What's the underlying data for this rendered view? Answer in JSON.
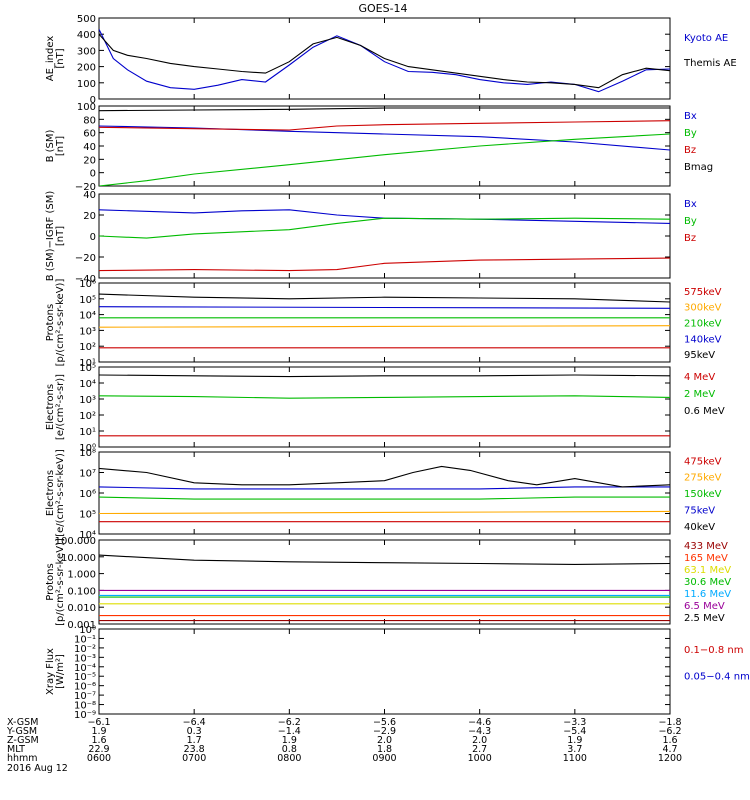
{
  "title": "GOES-14",
  "chart_data": [
    {
      "type": "line",
      "ylabel": "AE_index\n[nT]",
      "ylim": [
        0,
        500
      ],
      "yscale": "linear",
      "yticks": [
        "0",
        "100",
        "200",
        "300",
        "400",
        "500"
      ],
      "legend": [
        {
          "label": "Kyoto AE",
          "color": "#0000cc"
        },
        {
          "label": "Themis AE",
          "color": "#000000"
        }
      ],
      "series": [
        {
          "name": "Kyoto AE",
          "color": "#0000cc",
          "x": [
            0,
            0.15,
            0.3,
            0.5,
            0.75,
            1,
            1.25,
            1.5,
            1.75,
            2,
            2.25,
            2.5,
            2.75,
            3,
            3.25,
            3.5,
            3.75,
            4,
            4.25,
            4.5,
            4.75,
            5,
            5.25,
            5.5,
            5.75,
            6
          ],
          "values": [
            430,
            250,
            180,
            110,
            70,
            60,
            85,
            120,
            105,
            210,
            320,
            390,
            330,
            230,
            170,
            165,
            150,
            120,
            100,
            90,
            105,
            90,
            45,
            110,
            180,
            185
          ]
        },
        {
          "name": "Themis AE",
          "color": "#000000",
          "x": [
            0,
            0.15,
            0.3,
            0.5,
            0.75,
            1,
            1.25,
            1.5,
            1.75,
            2,
            2.25,
            2.5,
            2.75,
            3,
            3.25,
            3.5,
            3.75,
            4,
            4.25,
            4.5,
            4.75,
            5,
            5.25,
            5.5,
            5.75,
            6
          ],
          "values": [
            400,
            300,
            270,
            250,
            220,
            200,
            185,
            170,
            160,
            230,
            340,
            380,
            330,
            250,
            200,
            180,
            160,
            140,
            120,
            105,
            100,
            90,
            70,
            150,
            190,
            175
          ]
        }
      ]
    },
    {
      "type": "line",
      "ylabel": "B (SM)\n[nT]",
      "ylim": [
        -20,
        100
      ],
      "yscale": "linear",
      "yticks": [
        "−20",
        "0",
        "20",
        "40",
        "60",
        "80",
        "100"
      ],
      "legend": [
        {
          "label": "Bx",
          "color": "#0000cc"
        },
        {
          "label": "By",
          "color": "#00bb00"
        },
        {
          "label": "Bz",
          "color": "#cc0000"
        },
        {
          "label": "Bmag",
          "color": "#000000"
        }
      ],
      "series": [
        {
          "name": "Bx",
          "color": "#0000cc",
          "x": [
            0,
            1,
            2,
            3,
            4,
            5,
            6
          ],
          "values": [
            70,
            67,
            62,
            58,
            54,
            46,
            34
          ]
        },
        {
          "name": "By",
          "color": "#00bb00",
          "x": [
            0,
            0.5,
            1,
            2,
            3,
            4,
            5,
            6
          ],
          "values": [
            -20,
            -12,
            -2,
            12,
            27,
            40,
            50,
            58
          ]
        },
        {
          "name": "Bz",
          "color": "#cc0000",
          "x": [
            0,
            1,
            2,
            2.5,
            3,
            4,
            5,
            6
          ],
          "values": [
            68,
            66,
            64,
            70,
            72,
            74,
            76,
            78
          ]
        },
        {
          "name": "Bmag",
          "color": "#000000",
          "x": [
            0,
            1,
            2,
            3,
            4,
            5,
            6
          ],
          "values": [
            93,
            94,
            95,
            97,
            97,
            97,
            97
          ]
        }
      ]
    },
    {
      "type": "line",
      "ylabel": "B (SM)−IGRF (SM)\n[nT]",
      "ylim": [
        -40,
        40
      ],
      "yscale": "linear",
      "yticks": [
        "−40",
        "−20",
        "0",
        "20",
        "40"
      ],
      "legend": [
        {
          "label": "Bx",
          "color": "#0000cc"
        },
        {
          "label": "By",
          "color": "#00bb00"
        },
        {
          "label": "Bz",
          "color": "#cc0000"
        }
      ],
      "series": [
        {
          "name": "Bx",
          "color": "#0000cc",
          "x": [
            0,
            1,
            1.5,
            2,
            2.5,
            3,
            4,
            5,
            6
          ],
          "values": [
            25,
            22,
            24,
            25,
            20,
            17,
            16,
            14,
            12
          ]
        },
        {
          "name": "By",
          "color": "#00bb00",
          "x": [
            0,
            0.5,
            1,
            2,
            2.5,
            3,
            4,
            5,
            6
          ],
          "values": [
            0,
            -2,
            2,
            6,
            12,
            17,
            16,
            17,
            16
          ]
        },
        {
          "name": "Bz",
          "color": "#cc0000",
          "x": [
            0,
            1,
            2,
            2.5,
            3,
            4,
            5,
            6
          ],
          "values": [
            -33,
            -32,
            -33,
            -32,
            -26,
            -23,
            -22,
            -21
          ]
        }
      ]
    },
    {
      "type": "line",
      "ylabel": "Protons\n[p/(cm²-s-sr-keV)]",
      "ylim": [
        1,
        6
      ],
      "yscale": "log",
      "yticks": [
        "10¹",
        "10²",
        "10³",
        "10⁴",
        "10⁵",
        "10⁶"
      ],
      "legend": [
        {
          "label": "575keV",
          "color": "#cc0000"
        },
        {
          "label": "300keV",
          "color": "#ffaa00"
        },
        {
          "label": "210keV",
          "color": "#00bb00"
        },
        {
          "label": "140keV",
          "color": "#0000cc"
        },
        {
          "label": "95keV",
          "color": "#000000"
        }
      ],
      "series": [
        {
          "name": "575keV",
          "color": "#cc0000",
          "x": [
            0,
            6
          ],
          "values": [
            1.9,
            1.9
          ]
        },
        {
          "name": "300keV",
          "color": "#ffaa00",
          "x": [
            0,
            6
          ],
          "values": [
            3.2,
            3.3
          ]
        },
        {
          "name": "210keV",
          "color": "#00bb00",
          "x": [
            0,
            6
          ],
          "values": [
            3.8,
            3.8
          ]
        },
        {
          "name": "140keV",
          "color": "#0000cc",
          "x": [
            0,
            6
          ],
          "values": [
            4.5,
            4.4
          ]
        },
        {
          "name": "95keV",
          "color": "#000000",
          "x": [
            0,
            1,
            2,
            3,
            4,
            5,
            6
          ],
          "values": [
            5.3,
            5.1,
            5.0,
            5.1,
            5.05,
            5.0,
            4.8
          ]
        }
      ]
    },
    {
      "type": "line",
      "ylabel": "Electrons\n[e/(cm²-s-sr)]",
      "ylim": [
        0,
        5
      ],
      "yscale": "log",
      "yticks": [
        "10⁰",
        "10¹",
        "10²",
        "10³",
        "10⁴",
        "10⁵"
      ],
      "legend": [
        {
          "label": "4 MeV",
          "color": "#cc0000"
        },
        {
          "label": "2 MeV",
          "color": "#00bb00"
        },
        {
          "label": "0.6 MeV",
          "color": "#000000"
        }
      ],
      "series": [
        {
          "name": "4 MeV",
          "color": "#cc0000",
          "x": [
            0,
            6
          ],
          "values": [
            0.7,
            0.7
          ]
        },
        {
          "name": "2 MeV",
          "color": "#00bb00",
          "x": [
            0,
            1,
            2,
            3,
            4,
            5,
            6
          ],
          "values": [
            3.2,
            3.15,
            3.05,
            3.1,
            3.15,
            3.2,
            3.1
          ]
        },
        {
          "name": "0.6 MeV",
          "color": "#000000",
          "x": [
            0,
            1,
            2,
            3,
            4,
            5,
            6
          ],
          "values": [
            4.5,
            4.45,
            4.4,
            4.45,
            4.45,
            4.5,
            4.45
          ]
        }
      ]
    },
    {
      "type": "line",
      "ylabel": "Electrons\n[e/(cm²-s-sr-keV)]",
      "ylim": [
        4,
        8
      ],
      "yscale": "log",
      "yticks": [
        "10⁴",
        "10⁵",
        "10⁶",
        "10⁷",
        "10⁸"
      ],
      "legend": [
        {
          "label": "475keV",
          "color": "#cc0000"
        },
        {
          "label": "275keV",
          "color": "#ffaa00"
        },
        {
          "label": "150keV",
          "color": "#00bb00"
        },
        {
          "label": "75keV",
          "color": "#0000cc"
        },
        {
          "label": "40keV",
          "color": "#000000"
        }
      ],
      "series": [
        {
          "name": "475keV",
          "color": "#cc0000",
          "x": [
            0,
            6
          ],
          "values": [
            4.6,
            4.6
          ]
        },
        {
          "name": "275keV",
          "color": "#ffaa00",
          "x": [
            0,
            6
          ],
          "values": [
            5.0,
            5.1
          ]
        },
        {
          "name": "150keV",
          "color": "#00bb00",
          "x": [
            0,
            1,
            2,
            3,
            4,
            5,
            6
          ],
          "values": [
            5.8,
            5.7,
            5.7,
            5.7,
            5.7,
            5.8,
            5.8
          ]
        },
        {
          "name": "75keV",
          "color": "#0000cc",
          "x": [
            0,
            1,
            2,
            3,
            4,
            5,
            6
          ],
          "values": [
            6.3,
            6.2,
            6.2,
            6.2,
            6.2,
            6.3,
            6.3
          ]
        },
        {
          "name": "40keV",
          "color": "#000000",
          "x": [
            0,
            0.5,
            1,
            1.5,
            2,
            2.5,
            3,
            3.3,
            3.6,
            3.9,
            4.3,
            4.6,
            5,
            5.5,
            6
          ],
          "values": [
            7.2,
            7.0,
            6.5,
            6.4,
            6.4,
            6.5,
            6.6,
            7.0,
            7.3,
            7.1,
            6.6,
            6.4,
            6.7,
            6.3,
            6.4
          ]
        }
      ]
    },
    {
      "type": "line",
      "ylabel": "Protons\n[p/(cm²-s-sr-keV)]",
      "ylim": [
        -3,
        2
      ],
      "yscale": "log",
      "yticks": [
        "0.001",
        "0.010",
        "0.100",
        "1.000",
        "10.000",
        "100.000"
      ],
      "legend": [
        {
          "label": "433 MeV",
          "color": "#990000"
        },
        {
          "label": "165 MeV",
          "color": "#ff3300"
        },
        {
          "label": "63.1 MeV",
          "color": "#dddd00"
        },
        {
          "label": "30.6 MeV",
          "color": "#00bb00"
        },
        {
          "label": "11.6 MeV",
          "color": "#00aaff"
        },
        {
          "label": "6.5 MeV",
          "color": "#990099"
        },
        {
          "label": "2.5 MeV",
          "color": "#000000"
        }
      ],
      "series": [
        {
          "name": "433 MeV",
          "color": "#990000",
          "x": [
            0,
            6
          ],
          "values": [
            -2.8,
            -2.8
          ]
        },
        {
          "name": "165 MeV",
          "color": "#ff3300",
          "x": [
            0,
            6
          ],
          "values": [
            -2.5,
            -2.5
          ]
        },
        {
          "name": "63.1 MeV",
          "color": "#dddd00",
          "x": [
            0,
            6
          ],
          "values": [
            -1.8,
            -1.8
          ]
        },
        {
          "name": "30.6 MeV",
          "color": "#00bb00",
          "x": [
            0,
            6
          ],
          "values": [
            -1.4,
            -1.4
          ]
        },
        {
          "name": "11.6 MeV",
          "color": "#00aaff",
          "x": [
            0,
            6
          ],
          "values": [
            -1.3,
            -1.3
          ]
        },
        {
          "name": "6.5 MeV",
          "color": "#990099",
          "x": [
            0,
            6
          ],
          "values": [
            -1.0,
            -1.0
          ]
        },
        {
          "name": "2.5 MeV",
          "color": "#000000",
          "x": [
            0,
            1,
            2,
            3,
            4,
            5,
            6
          ],
          "values": [
            1.1,
            0.8,
            0.7,
            0.65,
            0.6,
            0.55,
            0.6
          ]
        }
      ]
    },
    {
      "type": "line",
      "ylabel": "Xray Flux\n[W/m²]",
      "ylim": [
        -9,
        0
      ],
      "yscale": "log",
      "yticks": [
        "10⁻⁹",
        "10⁻⁸",
        "10⁻⁷",
        "10⁻⁶",
        "10⁻⁵",
        "10⁻⁴",
        "10⁻³",
        "10⁻²",
        "10⁻¹",
        "10⁰"
      ],
      "legend": [
        {
          "label": "0.1−0.8 nm",
          "color": "#cc0000"
        },
        {
          "label": "0.05−0.4 nm",
          "color": "#0000cc"
        }
      ],
      "series": []
    }
  ],
  "footer": {
    "row_labels": [
      "X-GSM",
      "Y-GSM",
      "Z-GSM",
      "MLT",
      "hhmm"
    ],
    "columns": [
      [
        "−6.1",
        "1.9",
        "1.6",
        "22.9",
        "0600"
      ],
      [
        "−6.4",
        "0.3",
        "1.7",
        "23.8",
        "0700"
      ],
      [
        "−6.2",
        "−1.4",
        "1.9",
        "0.8",
        "0800"
      ],
      [
        "−5.6",
        "−2.9",
        "2.0",
        "1.8",
        "0900"
      ],
      [
        "−4.6",
        "−4.3",
        "2.0",
        "2.7",
        "1000"
      ],
      [
        "−3.3",
        "−5.4",
        "1.9",
        "3.7",
        "1100"
      ],
      [
        "−1.8",
        "−6.2",
        "1.6",
        "4.7",
        "1200"
      ]
    ],
    "date": "2016 Aug 12"
  }
}
